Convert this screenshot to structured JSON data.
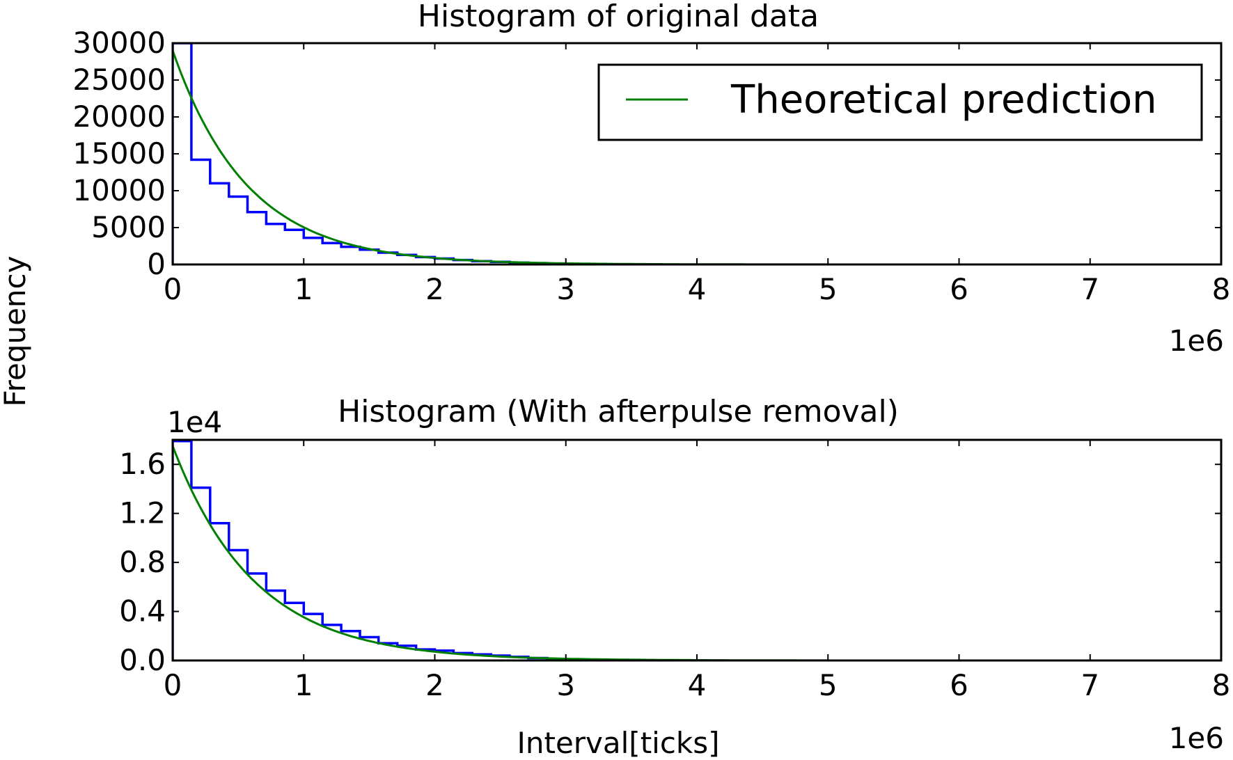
{
  "figure": {
    "ylabel": "Frequency",
    "xlabel": "Interval[ticks]"
  },
  "chart_data": [
    {
      "type": "histogram",
      "title": "Histogram of original data",
      "x_offset_label": "1e6",
      "y_offset_label": "",
      "xlim": [
        0,
        8
      ],
      "ylim": [
        0,
        30000
      ],
      "x_ticks": [
        "0",
        "1",
        "2",
        "3",
        "4",
        "5",
        "6",
        "7",
        "8"
      ],
      "x_tick_values": [
        0,
        1,
        2,
        3,
        4,
        5,
        6,
        7,
        8
      ],
      "y_ticks": [
        "0",
        "5000",
        "10000",
        "15000",
        "20000",
        "25000",
        "30000"
      ],
      "y_tick_values": [
        0,
        5000,
        10000,
        15000,
        20000,
        25000,
        30000
      ],
      "legend": {
        "label": "Theoretical prediction",
        "placement": "top-right"
      },
      "series": [
        {
          "kind": "step-histogram",
          "color": "#0000ff",
          "bin_edges": [
            0,
            0.143,
            0.286,
            0.429,
            0.571,
            0.714,
            0.857,
            1.0,
            1.143,
            1.286,
            1.429,
            1.571,
            1.714,
            1.857,
            2.0,
            2.143,
            2.286,
            2.429,
            2.571,
            2.714,
            2.857,
            3.0
          ],
          "counts": [
            30000,
            14200,
            11000,
            9200,
            7100,
            5500,
            4700,
            3600,
            2900,
            2400,
            2000,
            1600,
            1300,
            1000,
            800,
            600,
            450,
            350,
            250,
            180,
            120
          ]
        },
        {
          "name": "Theoretical prediction",
          "kind": "line",
          "color": "#008000",
          "x_range": [
            0,
            5
          ],
          "y0": 29000,
          "decay_per_1e6": 1.75
        }
      ]
    },
    {
      "type": "histogram",
      "title": "Histogram (With afterpulse removal)",
      "x_offset_label": "1e6",
      "y_offset_label": "1e4",
      "xlim": [
        0,
        8
      ],
      "ylim": [
        0,
        1.8
      ],
      "x_ticks": [
        "0",
        "1",
        "2",
        "3",
        "4",
        "5",
        "6",
        "7",
        "8"
      ],
      "x_tick_values": [
        0,
        1,
        2,
        3,
        4,
        5,
        6,
        7,
        8
      ],
      "y_ticks": [
        "0.0",
        "0.4",
        "0.8",
        "1.2",
        "1.6"
      ],
      "y_tick_values": [
        0,
        0.4,
        0.8,
        1.2,
        1.6
      ],
      "series": [
        {
          "kind": "step-histogram",
          "color": "#0000ff",
          "bin_edges": [
            0,
            0.143,
            0.286,
            0.429,
            0.571,
            0.714,
            0.857,
            1.0,
            1.143,
            1.286,
            1.429,
            1.571,
            1.714,
            1.857,
            2.0,
            2.143,
            2.286,
            2.429,
            2.571,
            2.714,
            2.857,
            3.0
          ],
          "counts": [
            1.79,
            1.41,
            1.12,
            0.9,
            0.71,
            0.57,
            0.47,
            0.38,
            0.29,
            0.24,
            0.19,
            0.14,
            0.12,
            0.09,
            0.08,
            0.06,
            0.05,
            0.04,
            0.03,
            0.02,
            0.01
          ]
        },
        {
          "name": "Theoretical prediction",
          "kind": "line",
          "color": "#008000",
          "x_range": [
            0,
            5
          ],
          "y0": 1.75,
          "decay_per_1e6": 1.6
        }
      ]
    }
  ]
}
